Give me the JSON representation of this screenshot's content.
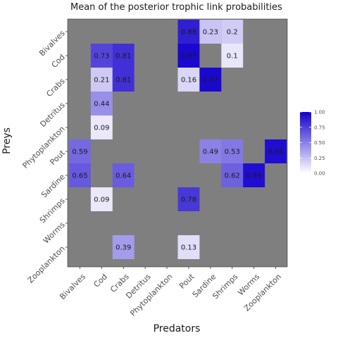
{
  "chart_data": {
    "type": "heatmap",
    "title": "Mean of the posterior trophic link probabilities",
    "xlabel": "Predators",
    "ylabel": "Preys",
    "x_categories": [
      "Bivalves",
      "Cod",
      "Crabs",
      "Detritus",
      "Phytoplankton",
      "Pout",
      "Sardine",
      "Shrimps",
      "Worms",
      "Zooplankton"
    ],
    "y_categories": [
      "Bivalves",
      "Cod",
      "Crabs",
      "Detritus",
      "Phytoplankton",
      "Pout",
      "Sardine",
      "Shrimps",
      "Worms",
      "Zooplankton"
    ],
    "cells": [
      {
        "x": "Pout",
        "y": "Bivalves",
        "value": 0.88,
        "label": "0.88"
      },
      {
        "x": "Sardine",
        "y": "Bivalves",
        "value": 0.23,
        "label": "0.23"
      },
      {
        "x": "Shrimps",
        "y": "Bivalves",
        "value": 0.2,
        "label": "0.2"
      },
      {
        "x": "Cod",
        "y": "Cod",
        "value": 0.73,
        "label": "0.73"
      },
      {
        "x": "Crabs",
        "y": "Cod",
        "value": 0.81,
        "label": "0.81"
      },
      {
        "x": "Pout",
        "y": "Cod",
        "value": 0.97,
        "label": "0.97"
      },
      {
        "x": "Shrimps",
        "y": "Cod",
        "value": 0.1,
        "label": "0.1"
      },
      {
        "x": "Cod",
        "y": "Crabs",
        "value": 0.21,
        "label": "0.21"
      },
      {
        "x": "Crabs",
        "y": "Crabs",
        "value": 0.81,
        "label": "0.81"
      },
      {
        "x": "Pout",
        "y": "Crabs",
        "value": 0.16,
        "label": "0.16"
      },
      {
        "x": "Sardine",
        "y": "Crabs",
        "value": 0.97,
        "label": "0.97"
      },
      {
        "x": "Cod",
        "y": "Detritus",
        "value": 0.44,
        "label": "0.44"
      },
      {
        "x": "Cod",
        "y": "Phytoplankton",
        "value": 0.09,
        "label": "0.09"
      },
      {
        "x": "Bivalves",
        "y": "Pout",
        "value": 0.59,
        "label": "0.59"
      },
      {
        "x": "Sardine",
        "y": "Pout",
        "value": 0.49,
        "label": "0.49"
      },
      {
        "x": "Shrimps",
        "y": "Pout",
        "value": 0.53,
        "label": "0.53"
      },
      {
        "x": "Zooplankton",
        "y": "Pout",
        "value": 0.95,
        "label": "0.95"
      },
      {
        "x": "Bivalves",
        "y": "Sardine",
        "value": 0.65,
        "label": "0.65"
      },
      {
        "x": "Crabs",
        "y": "Sardine",
        "value": 0.64,
        "label": "0.64"
      },
      {
        "x": "Shrimps",
        "y": "Sardine",
        "value": 0.62,
        "label": "0.62"
      },
      {
        "x": "Worms",
        "y": "Sardine",
        "value": 0.95,
        "label": "0.95"
      },
      {
        "x": "Cod",
        "y": "Shrimps",
        "value": 0.09,
        "label": "0.09"
      },
      {
        "x": "Pout",
        "y": "Shrimps",
        "value": 0.78,
        "label": "0.78"
      },
      {
        "x": "Crabs",
        "y": "Zooplankton",
        "value": 0.39,
        "label": "0.39"
      },
      {
        "x": "Pout",
        "y": "Zooplankton",
        "value": 0.13,
        "label": "0.13"
      }
    ],
    "legend": {
      "position": "right",
      "range": [
        0,
        1
      ],
      "ticks": [
        "0.00",
        "0.25",
        "0.50",
        "0.75",
        "1.00"
      ],
      "low_color": "#ffffff",
      "high_color": "#1400cc"
    },
    "panel_background": "#7f7f7f",
    "grid": false
  }
}
